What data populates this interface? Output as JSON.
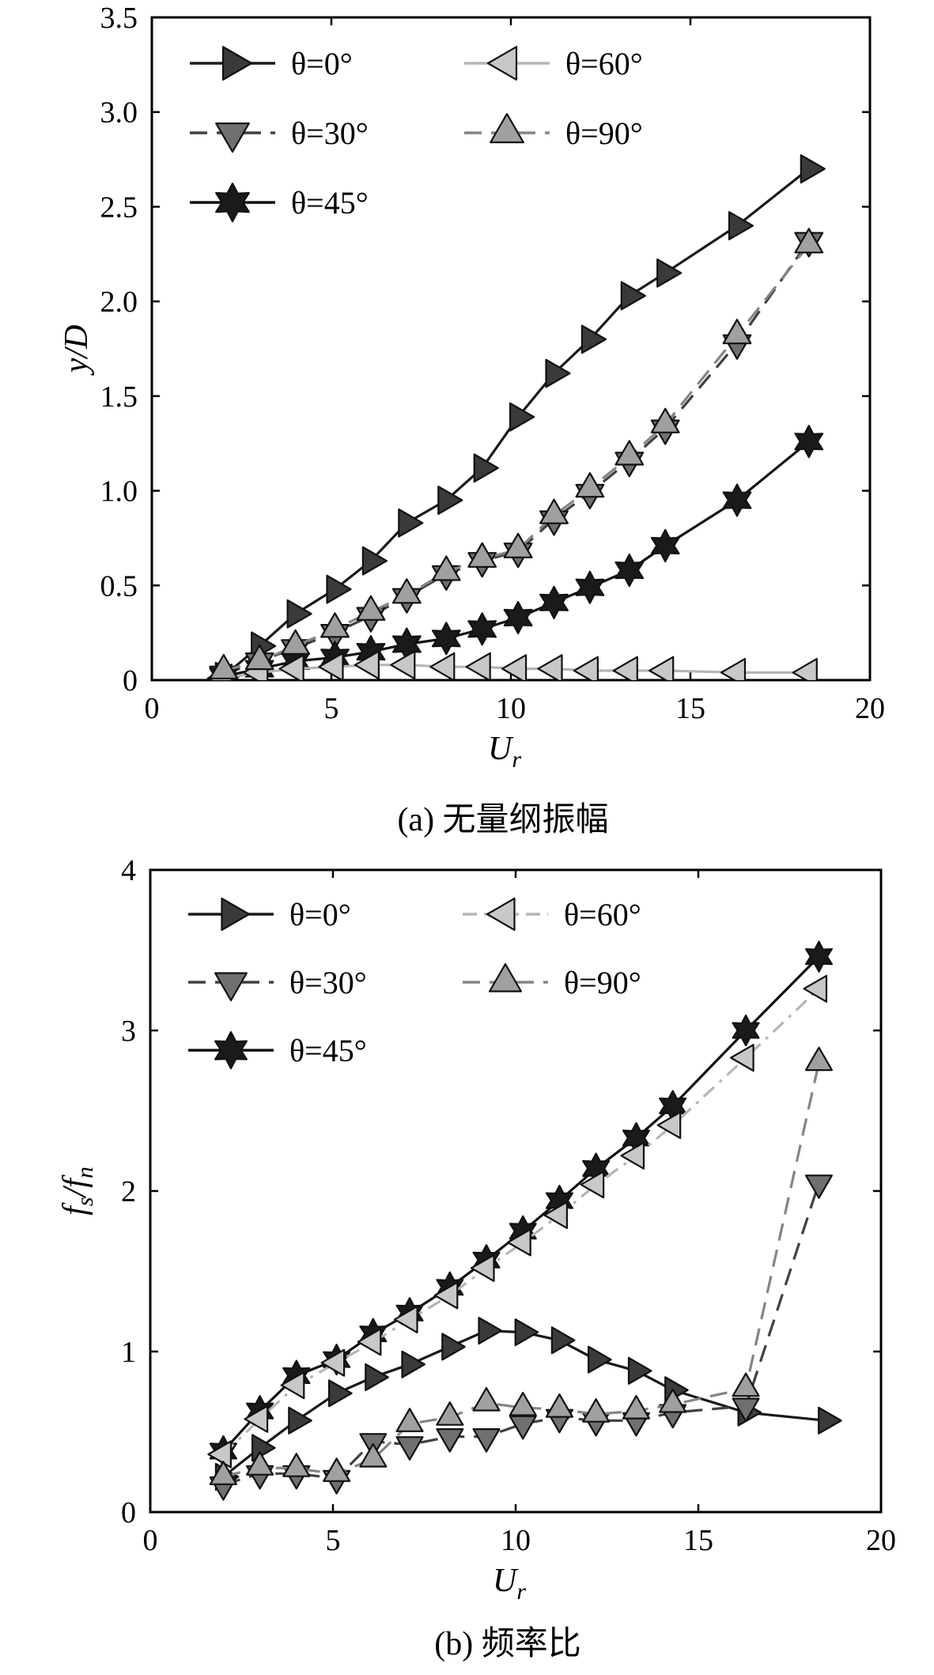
{
  "chart_data": [
    {
      "type": "line",
      "caption": "(a) 无量纲振幅",
      "xlabel": "U",
      "xlabel_sub": "r",
      "ylabel": "y/D",
      "xlim": [
        0,
        20
      ],
      "ylim": [
        0,
        3.5
      ],
      "xticks": [
        "0",
        "5",
        "10",
        "15",
        "20"
      ],
      "yticks": [
        "0",
        "0.5",
        "1.0",
        "1.5",
        "2.0",
        "2.5",
        "3.0",
        "3.5"
      ],
      "legend": {
        "position": "top-left",
        "columns": 2
      },
      "series": [
        {
          "name": "θ=0°",
          "style": "solid",
          "marker": "triangle-right",
          "line_color": "#1a1a1a",
          "marker_fill": "#3a3a3a",
          "x": [
            2.0,
            3.0,
            4.0,
            5.1,
            6.1,
            7.1,
            8.2,
            9.2,
            10.2,
            11.2,
            12.2,
            13.3,
            14.3,
            16.3,
            18.3
          ],
          "y": [
            0.02,
            0.18,
            0.35,
            0.48,
            0.63,
            0.83,
            0.95,
            1.12,
            1.39,
            1.62,
            1.8,
            2.03,
            2.15,
            2.4,
            2.7
          ]
        },
        {
          "name": "θ=30°",
          "style": "dashed",
          "marker": "triangle-down",
          "line_color": "#404040",
          "marker_fill": "#707070",
          "x": [
            2.0,
            3.0,
            4.0,
            5.1,
            6.1,
            7.1,
            8.2,
            9.2,
            10.2,
            11.2,
            12.2,
            13.3,
            14.3,
            16.3,
            18.3
          ],
          "y": [
            0.03,
            0.1,
            0.17,
            0.25,
            0.34,
            0.44,
            0.56,
            0.63,
            0.68,
            0.85,
            0.99,
            1.16,
            1.33,
            1.78,
            2.32
          ]
        },
        {
          "name": "θ=45°",
          "style": "solid",
          "marker": "star",
          "line_color": "#111111",
          "marker_fill": "#1a1a1a",
          "x": [
            2.0,
            3.0,
            4.0,
            5.1,
            6.1,
            7.1,
            8.2,
            9.2,
            10.2,
            11.2,
            12.2,
            13.3,
            14.3,
            16.3,
            18.3
          ],
          "y": [
            0.02,
            0.06,
            0.1,
            0.12,
            0.15,
            0.19,
            0.22,
            0.27,
            0.33,
            0.41,
            0.49,
            0.58,
            0.71,
            0.95,
            1.26
          ]
        },
        {
          "name": "θ=60°",
          "style": "solid",
          "marker": "triangle-left",
          "line_color": "#b5b5b5",
          "marker_fill": "#c8c8c8",
          "x": [
            2.0,
            3.0,
            4.0,
            5.1,
            6.1,
            7.1,
            8.2,
            9.2,
            10.2,
            11.2,
            12.2,
            13.3,
            14.3,
            16.3,
            18.3
          ],
          "y": [
            0.01,
            0.04,
            0.06,
            0.07,
            0.08,
            0.08,
            0.07,
            0.07,
            0.06,
            0.06,
            0.05,
            0.05,
            0.05,
            0.04,
            0.04
          ]
        },
        {
          "name": "θ=90°",
          "style": "dashed",
          "marker": "triangle-up",
          "line_color": "#858585",
          "marker_fill": "#a0a0a0",
          "x": [
            2.0,
            3.0,
            4.0,
            5.1,
            6.1,
            7.1,
            8.2,
            9.2,
            10.2,
            11.2,
            12.2,
            13.3,
            14.3,
            16.3,
            18.3
          ],
          "y": [
            0.05,
            0.1,
            0.18,
            0.27,
            0.36,
            0.45,
            0.57,
            0.64,
            0.69,
            0.87,
            1.01,
            1.18,
            1.35,
            1.82,
            2.3
          ]
        }
      ]
    },
    {
      "type": "line",
      "caption": "(b) 频率比",
      "xlabel": "U",
      "xlabel_sub": "r",
      "ylabel": "f",
      "ylabel_sub1": "s",
      "ylabel_mid": "/f",
      "ylabel_sub2": "n",
      "xlim": [
        0,
        20
      ],
      "ylim": [
        0,
        4
      ],
      "xticks": [
        "0",
        "5",
        "10",
        "15",
        "20"
      ],
      "yticks": [
        "0",
        "1",
        "2",
        "3",
        "4"
      ],
      "legend": {
        "position": "top-left",
        "columns": 2
      },
      "series": [
        {
          "name": "θ=0°",
          "style": "solid",
          "marker": "triangle-right",
          "line_color": "#1a1a1a",
          "marker_fill": "#3a3a3a",
          "x": [
            2.0,
            3.0,
            4.0,
            5.1,
            6.1,
            7.1,
            8.2,
            9.2,
            10.2,
            11.2,
            12.2,
            13.3,
            14.3,
            16.3,
            18.5
          ],
          "y": [
            0.22,
            0.4,
            0.57,
            0.74,
            0.84,
            0.92,
            1.03,
            1.13,
            1.12,
            1.07,
            0.95,
            0.88,
            0.76,
            0.62,
            0.57
          ]
        },
        {
          "name": "θ=30°",
          "style": "dashed",
          "marker": "triangle-down",
          "line_color": "#404040",
          "marker_fill": "#707070",
          "x": [
            2.0,
            3.0,
            4.0,
            5.1,
            6.1,
            7.1,
            8.2,
            9.2,
            10.2,
            11.2,
            12.2,
            13.3,
            14.3,
            16.3,
            18.3
          ],
          "y": [
            0.17,
            0.24,
            0.24,
            0.21,
            0.44,
            0.42,
            0.47,
            0.47,
            0.55,
            0.59,
            0.57,
            0.57,
            0.62,
            0.66,
            2.05
          ]
        },
        {
          "name": "θ=45°",
          "style": "solid",
          "marker": "star",
          "line_color": "#111111",
          "marker_fill": "#1a1a1a",
          "x": [
            2.0,
            3.0,
            4.0,
            5.1,
            6.1,
            7.1,
            8.2,
            9.2,
            10.2,
            11.2,
            12.2,
            13.3,
            14.3,
            16.3,
            18.3
          ],
          "y": [
            0.38,
            0.63,
            0.85,
            0.95,
            1.11,
            1.24,
            1.4,
            1.57,
            1.75,
            1.94,
            2.14,
            2.33,
            2.53,
            3.0,
            3.46
          ]
        },
        {
          "name": "θ=60°",
          "style": "dashdot",
          "marker": "triangle-left",
          "line_color": "#b5b5b5",
          "marker_fill": "#c8c8c8",
          "x": [
            2.0,
            3.0,
            4.0,
            5.1,
            6.1,
            7.1,
            8.2,
            9.2,
            10.2,
            11.2,
            12.2,
            13.3,
            14.3,
            16.3,
            18.3
          ],
          "y": [
            0.36,
            0.58,
            0.79,
            0.93,
            1.06,
            1.2,
            1.35,
            1.52,
            1.68,
            1.85,
            2.04,
            2.22,
            2.41,
            2.83,
            3.26
          ]
        },
        {
          "name": "θ=90°",
          "style": "dashed",
          "marker": "triangle-up",
          "line_color": "#858585",
          "marker_fill": "#a0a0a0",
          "x": [
            2.0,
            3.0,
            4.0,
            5.1,
            6.1,
            7.1,
            8.2,
            9.2,
            10.2,
            11.2,
            12.2,
            13.3,
            14.3,
            16.3,
            18.3
          ],
          "y": [
            0.22,
            0.28,
            0.27,
            0.24,
            0.33,
            0.55,
            0.59,
            0.68,
            0.65,
            0.64,
            0.61,
            0.63,
            0.67,
            0.77,
            2.8
          ]
        }
      ]
    }
  ]
}
